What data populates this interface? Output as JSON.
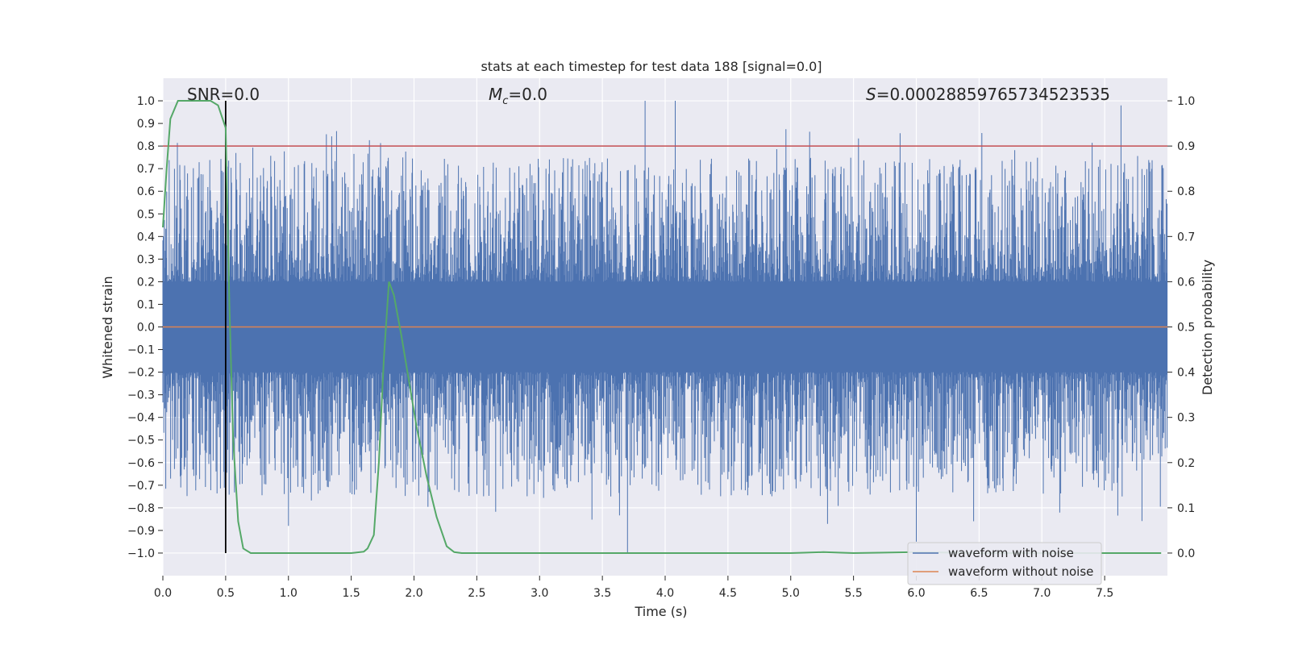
{
  "chart_data": {
    "type": "line",
    "title": "stats at each timestep for test data 188 [signal=0.0]",
    "xlabel": "Time (s)",
    "ylabel": "Whitened strain",
    "y2label": "Detection probability",
    "xlim": [
      0,
      8
    ],
    "ylim": [
      -1.1,
      1.1
    ],
    "y2lim": [
      -0.05,
      1.05
    ],
    "xticks": [
      0.0,
      0.5,
      1.0,
      1.5,
      2.0,
      2.5,
      3.0,
      3.5,
      4.0,
      4.5,
      5.0,
      5.5,
      6.0,
      6.5,
      7.0,
      7.5
    ],
    "xtick_labels": [
      "0.0",
      "0.5",
      "1.0",
      "1.5",
      "2.0",
      "2.5",
      "3.0",
      "3.5",
      "4.0",
      "4.5",
      "5.0",
      "5.5",
      "6.0",
      "6.5",
      "7.0",
      "7.5"
    ],
    "yticks": [
      1.0,
      0.9,
      0.8,
      0.7,
      0.6,
      0.5,
      0.4,
      0.3,
      0.2,
      0.1,
      0.0,
      -0.1,
      -0.2,
      -0.3,
      -0.4,
      -0.5,
      -0.6,
      -0.7,
      -0.8,
      -0.9,
      -1.0
    ],
    "ytick_labels": [
      "1.0",
      "0.9",
      "0.8",
      "0.7",
      "0.6",
      "0.5",
      "0.4",
      "0.3",
      "0.2",
      "0.1",
      "0.0",
      "−0.1",
      "−0.2",
      "−0.3",
      "−0.4",
      "−0.5",
      "−0.6",
      "−0.7",
      "−0.8",
      "−0.9",
      "−1.0"
    ],
    "y2ticks": [
      1.0,
      0.9,
      0.8,
      0.7,
      0.6,
      0.5,
      0.4,
      0.3,
      0.2,
      0.1,
      0.0
    ],
    "y2tick_labels": [
      "1.0",
      "0.9",
      "0.8",
      "0.7",
      "0.6",
      "0.5",
      "0.4",
      "0.3",
      "0.2",
      "0.1",
      "0.0"
    ],
    "threshold": 0.9,
    "marker_time": 0.5,
    "annotations": {
      "snr": "SNR=0.0",
      "mc_symbol": "M",
      "mc_sub": "c",
      "mc_value": "=0.0",
      "s_symbol": "S",
      "s_value": "=0.00028859765734523535"
    },
    "series": [
      {
        "name": "waveform with noise",
        "color": "#4c72b0",
        "kind": "noise",
        "bulk_amplitude": 0.2,
        "peak_max": 1.0,
        "trough_min": -1.0
      },
      {
        "name": "waveform without noise",
        "color": "#dd8452",
        "kind": "flat",
        "value": 0.0
      },
      {
        "name": "detection probability",
        "color": "#55a868",
        "axis": "right",
        "t": [
          0.0,
          0.03,
          0.06,
          0.12,
          0.2,
          0.3,
          0.38,
          0.44,
          0.5,
          0.53,
          0.56,
          0.6,
          0.64,
          0.7,
          0.8,
          0.9,
          1.0,
          1.1,
          1.2,
          1.3,
          1.4,
          1.5,
          1.6,
          1.63,
          1.68,
          1.72,
          1.76,
          1.8,
          1.84,
          1.9,
          1.96,
          2.02,
          2.1,
          2.18,
          2.26,
          2.32,
          2.38,
          2.45,
          2.6,
          3.0,
          4.0,
          5.0,
          5.26,
          5.5,
          6.0,
          6.5,
          7.0,
          7.5,
          7.95
        ],
        "p": [
          0.72,
          0.85,
          0.96,
          1.0,
          1.0,
          1.0,
          1.0,
          0.99,
          0.94,
          0.55,
          0.25,
          0.07,
          0.01,
          0.0,
          0.0,
          0.0,
          0.0,
          0.0,
          0.0,
          0.0,
          0.0,
          0.0,
          0.003,
          0.01,
          0.04,
          0.2,
          0.43,
          0.6,
          0.57,
          0.48,
          0.38,
          0.28,
          0.17,
          0.08,
          0.015,
          0.002,
          0.0,
          0.0,
          0.0,
          0.0,
          0.0,
          0.0,
          0.002,
          0.0,
          0.002,
          0.0,
          0.0,
          0.0,
          0.0
        ]
      }
    ],
    "legend": {
      "placement": "lower-right",
      "entries": [
        "waveform with noise",
        "waveform without noise"
      ]
    }
  }
}
